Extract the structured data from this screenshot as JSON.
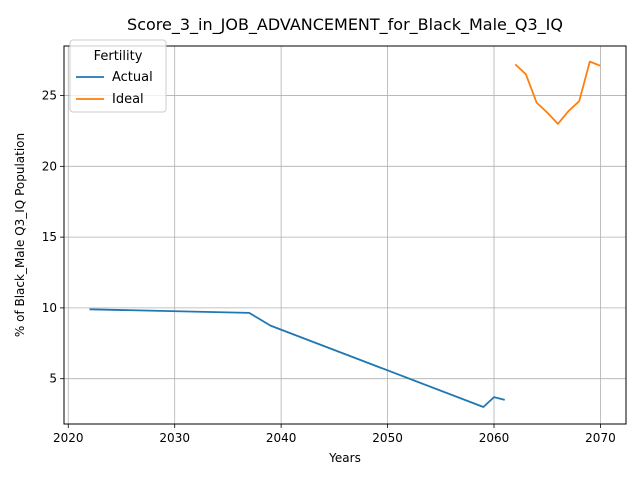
{
  "chart_data": {
    "type": "line",
    "title": "Score_3_in_JOB_ADVANCEMENT_for_Black_Male_Q3_IQ",
    "xlabel": "Years",
    "ylabel": "% of Black_Male Q3_IQ Population",
    "xlim": [
      2019.6,
      2072.4
    ],
    "ylim": [
      1.8,
      28.5
    ],
    "xticks": [
      2020,
      2030,
      2040,
      2050,
      2060,
      2070
    ],
    "yticks": [
      5,
      10,
      15,
      20,
      25
    ],
    "grid": true,
    "legend": {
      "title": "Fertility",
      "position": "top-left"
    },
    "series": [
      {
        "name": "Actual",
        "color": "#1f77b4",
        "x": [
          2022,
          2037,
          2039,
          2059,
          2060,
          2061
        ],
        "y": [
          9.9,
          9.65,
          8.75,
          3.0,
          3.7,
          3.5
        ]
      },
      {
        "name": "Ideal",
        "color": "#ff7f0e",
        "x": [
          2062,
          2063,
          2064,
          2065,
          2066,
          2067,
          2068,
          2069,
          2070
        ],
        "y": [
          27.2,
          26.5,
          24.5,
          23.8,
          23.0,
          23.9,
          24.6,
          27.4,
          27.1
        ]
      }
    ]
  }
}
